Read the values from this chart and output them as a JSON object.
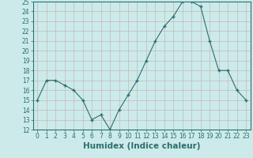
{
  "x": [
    0,
    1,
    2,
    3,
    4,
    5,
    6,
    7,
    8,
    9,
    10,
    11,
    12,
    13,
    14,
    15,
    16,
    17,
    18,
    19,
    20,
    21,
    22,
    23
  ],
  "y": [
    15,
    17,
    17,
    16.5,
    16,
    15,
    13,
    13.5,
    12,
    14,
    15.5,
    17,
    19,
    21,
    22.5,
    23.5,
    25,
    25,
    24.5,
    21,
    18,
    18,
    16,
    15
  ],
  "line_color": "#2d6e6e",
  "marker": "+",
  "bg_color": "#cceaea",
  "grid_color": "#c4b8b8",
  "xlabel": "Humidex (Indice chaleur)",
  "ylim": [
    12,
    25
  ],
  "xlim": [
    -0.5,
    23.5
  ],
  "yticks": [
    12,
    13,
    14,
    15,
    16,
    17,
    18,
    19,
    20,
    21,
    22,
    23,
    24,
    25
  ],
  "xticks": [
    0,
    1,
    2,
    3,
    4,
    5,
    6,
    7,
    8,
    9,
    10,
    11,
    12,
    13,
    14,
    15,
    16,
    17,
    18,
    19,
    20,
    21,
    22,
    23
  ],
  "tick_fontsize": 5.5,
  "xlabel_fontsize": 7.5
}
